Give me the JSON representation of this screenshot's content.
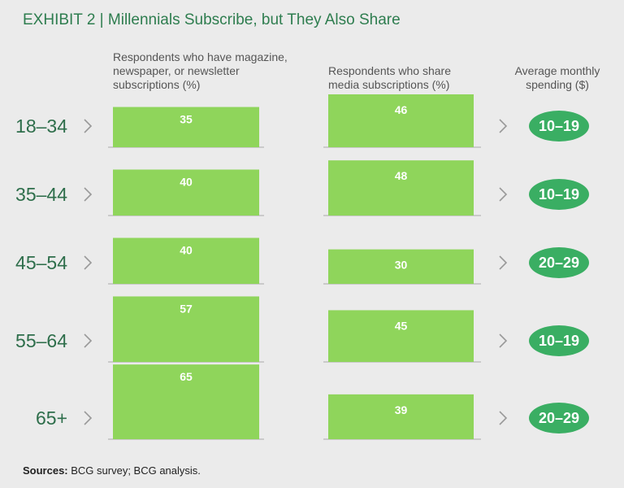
{
  "title": "EXHIBIT 2 | Millennials Subscribe, but They Also Share",
  "chart_data": {
    "type": "bar",
    "title": "EXHIBIT 2 | Millennials Subscribe, but They Also Share",
    "categories": [
      "18–34",
      "35–44",
      "45–54",
      "55–64",
      "65+"
    ],
    "series": [
      {
        "name": "Respondents who have magazine, newspaper, or newsletter subscriptions (%)",
        "values": [
          35,
          40,
          40,
          57,
          65
        ]
      },
      {
        "name": "Respondents who share media subscriptions (%)",
        "values": [
          46,
          48,
          30,
          45,
          39
        ]
      }
    ],
    "spending": {
      "name": "Average monthly spending ($)",
      "values": [
        "10–19",
        "10–19",
        "20–29",
        "10–19",
        "20–29"
      ]
    },
    "headers": {
      "subscriptions": [
        "Respondents who have magazine,",
        "newspaper, or newsletter",
        "subscriptions (%)"
      ],
      "share": [
        "Respondents who share",
        "media subscriptions (%)"
      ],
      "spending": [
        "Average monthly",
        "spending ($)"
      ]
    },
    "colors": {
      "bar": "#8fd55b",
      "pill": "#3aae63",
      "title": "#2e7d4f"
    }
  },
  "source": {
    "label": "Sources:",
    "text": " BCG survey; BCG analysis."
  }
}
